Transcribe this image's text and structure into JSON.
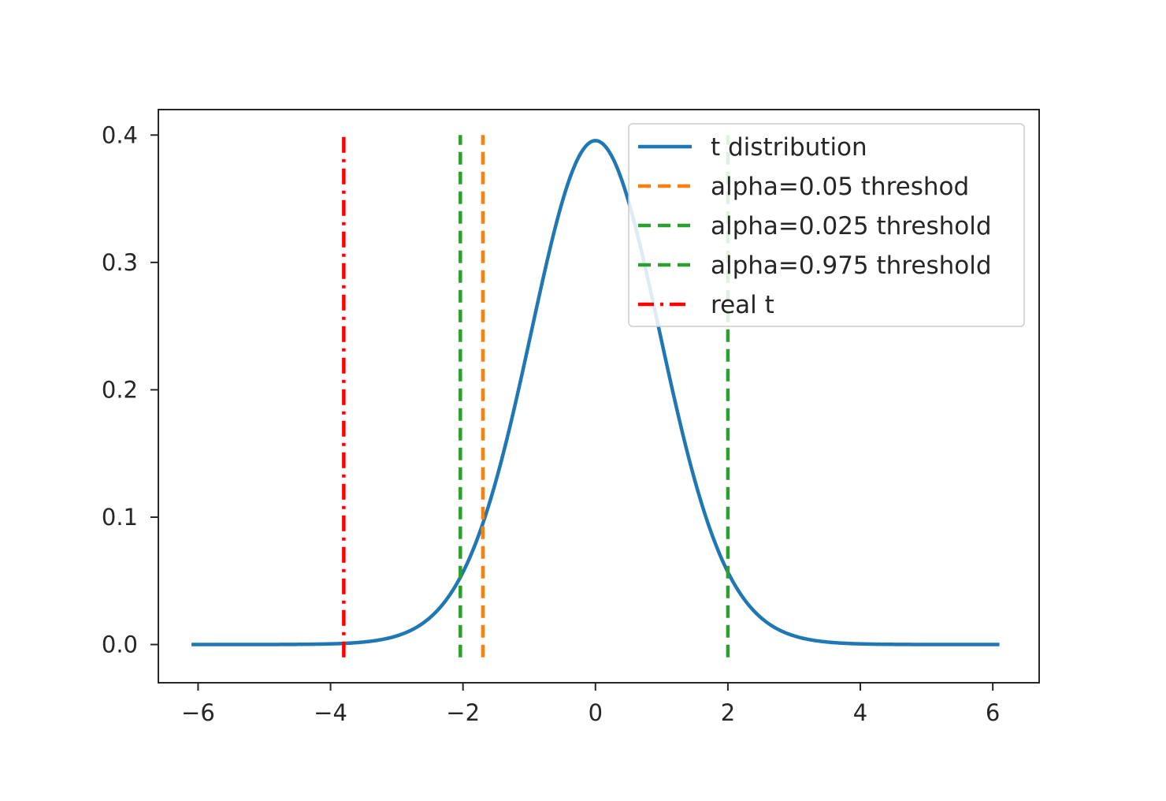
{
  "chart_data": {
    "type": "line",
    "title": "",
    "xlabel": "",
    "ylabel": "",
    "xlim": [
      -6.6,
      6.7
    ],
    "ylim": [
      -0.03,
      0.42
    ],
    "xticks": [
      -6,
      -4,
      -2,
      0,
      2,
      4,
      6
    ],
    "xtick_labels": [
      "−6",
      "−4",
      "−2",
      "0",
      "2",
      "4",
      "6"
    ],
    "yticks": [
      0.0,
      0.1,
      0.2,
      0.3,
      0.4
    ],
    "ytick_labels": [
      "0.0",
      "0.1",
      "0.2",
      "0.3",
      "0.4"
    ],
    "grid": false,
    "legend_position": "upper right",
    "curve": {
      "name": "t distribution",
      "color": "#1f77b4",
      "style": "solid",
      "x_range": [
        -6.1,
        6.1
      ],
      "df": 30
    },
    "vlines": [
      {
        "name": "alpha=0.05 threshod",
        "x": -1.7,
        "y_range": [
          -0.01,
          0.4
        ],
        "color": "#ff7f0e",
        "style": "dashed"
      },
      {
        "name": "alpha=0.025 threshold",
        "x": -2.04,
        "y_range": [
          -0.01,
          0.4
        ],
        "color": "#2ca02c",
        "style": "dashed"
      },
      {
        "name": "alpha=0.975 threshold",
        "x": 2.0,
        "y_range": [
          -0.01,
          0.4
        ],
        "color": "#2ca02c",
        "style": "dashed"
      },
      {
        "name": "real t",
        "x": -3.8,
        "y_range": [
          -0.01,
          0.4
        ],
        "color": "#ff0000",
        "style": "dashdot"
      }
    ],
    "legend": [
      {
        "label": "t distribution",
        "color": "#1f77b4",
        "style": "solid"
      },
      {
        "label": "alpha=0.05 threshod",
        "color": "#ff7f0e",
        "style": "dashed"
      },
      {
        "label": "alpha=0.025 threshold",
        "color": "#2ca02c",
        "style": "dashed"
      },
      {
        "label": "alpha=0.975 threshold",
        "color": "#2ca02c",
        "style": "dashed"
      },
      {
        "label": "real t",
        "color": "#ff0000",
        "style": "dashdot"
      }
    ]
  }
}
